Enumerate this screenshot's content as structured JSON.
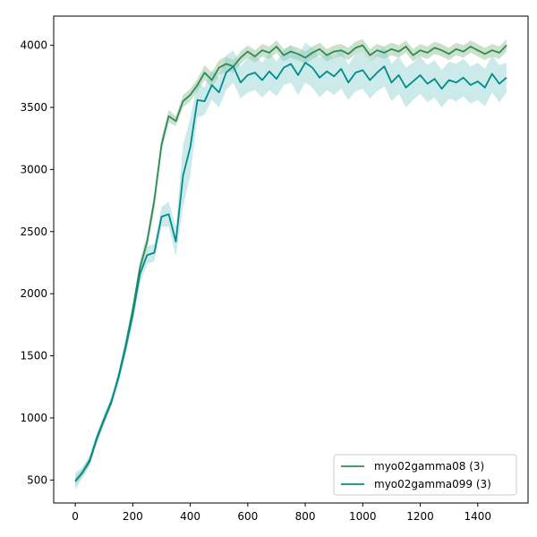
{
  "chart_data": {
    "type": "line",
    "title": "",
    "xlabel": "",
    "ylabel": "",
    "xlim": [
      -75,
      1575
    ],
    "ylim": [
      315,
      4235
    ],
    "xticks": [
      0,
      200,
      400,
      600,
      800,
      1000,
      1200,
      1400
    ],
    "yticks": [
      500,
      1000,
      1500,
      2000,
      2500,
      3000,
      3500,
      4000
    ],
    "grid": false,
    "legend_position": "lower-right",
    "series": [
      {
        "name": "myo02gamma08 (3)",
        "color": "#2e8b57",
        "band_color": "#8fbc8f",
        "x": [
          0,
          25,
          50,
          75,
          100,
          125,
          150,
          175,
          200,
          225,
          250,
          275,
          300,
          325,
          350,
          375,
          400,
          425,
          450,
          475,
          500,
          525,
          550,
          575,
          600,
          625,
          650,
          675,
          700,
          725,
          750,
          775,
          800,
          825,
          850,
          875,
          900,
          925,
          950,
          975,
          1000,
          1025,
          1050,
          1075,
          1100,
          1125,
          1150,
          1175,
          1200,
          1225,
          1250,
          1275,
          1300,
          1325,
          1350,
          1375,
          1400,
          1425,
          1450,
          1475,
          1500
        ],
        "y": [
          490,
          560,
          650,
          830,
          980,
          1120,
          1330,
          1580,
          1870,
          2210,
          2420,
          2750,
          3200,
          3430,
          3390,
          3550,
          3600,
          3680,
          3780,
          3720,
          3820,
          3850,
          3830,
          3900,
          3950,
          3910,
          3960,
          3940,
          3990,
          3920,
          3950,
          3930,
          3900,
          3940,
          3970,
          3920,
          3950,
          3960,
          3930,
          3980,
          4000,
          3920,
          3960,
          3940,
          3970,
          3950,
          3990,
          3920,
          3960,
          3940,
          3980,
          3960,
          3930,
          3970,
          3950,
          3990,
          3960,
          3930,
          3960,
          3940,
          4000
        ],
        "lower": [
          460,
          530,
          620,
          800,
          950,
          1090,
          1290,
          1530,
          1820,
          2150,
          2360,
          2680,
          3140,
          3380,
          3350,
          3500,
          3550,
          3630,
          3720,
          3660,
          3760,
          3790,
          3780,
          3850,
          3900,
          3860,
          3910,
          3890,
          3940,
          3870,
          3900,
          3880,
          3850,
          3890,
          3920,
          3870,
          3900,
          3910,
          3880,
          3930,
          3950,
          3870,
          3910,
          3890,
          3920,
          3900,
          3940,
          3870,
          3910,
          3890,
          3930,
          3910,
          3880,
          3920,
          3900,
          3940,
          3910,
          3880,
          3910,
          3890,
          3950
        ],
        "upper": [
          520,
          590,
          680,
          860,
          1010,
          1150,
          1370,
          1630,
          1920,
          2270,
          2480,
          2820,
          3260,
          3480,
          3430,
          3600,
          3650,
          3730,
          3840,
          3780,
          3880,
          3910,
          3880,
          3950,
          4000,
          3960,
          4010,
          3990,
          4040,
          3970,
          4000,
          3980,
          3950,
          3990,
          4020,
          3970,
          4000,
          4010,
          3980,
          4030,
          4050,
          3970,
          4010,
          3990,
          4020,
          4000,
          4040,
          3970,
          4010,
          3990,
          4030,
          4010,
          3980,
          4020,
          4000,
          4040,
          4010,
          3980,
          4010,
          3990,
          4050
        ]
      },
      {
        "name": "myo02gamma099 (3)",
        "color": "#008b8b",
        "band_color": "#8fd0d0",
        "x": [
          0,
          25,
          50,
          75,
          100,
          125,
          150,
          175,
          200,
          225,
          250,
          275,
          300,
          325,
          350,
          375,
          400,
          425,
          450,
          475,
          500,
          525,
          550,
          575,
          600,
          625,
          650,
          675,
          700,
          725,
          750,
          775,
          800,
          825,
          850,
          875,
          900,
          925,
          950,
          975,
          1000,
          1025,
          1050,
          1075,
          1100,
          1125,
          1150,
          1175,
          1200,
          1225,
          1250,
          1275,
          1300,
          1325,
          1350,
          1375,
          1400,
          1425,
          1450,
          1475,
          1500
        ],
        "y": [
          490,
          560,
          660,
          840,
          990,
          1130,
          1320,
          1560,
          1830,
          2160,
          2310,
          2330,
          2620,
          2640,
          2420,
          2950,
          3180,
          3560,
          3550,
          3680,
          3620,
          3780,
          3830,
          3700,
          3760,
          3780,
          3720,
          3790,
          3730,
          3820,
          3850,
          3760,
          3860,
          3820,
          3740,
          3790,
          3750,
          3810,
          3700,
          3780,
          3800,
          3720,
          3780,
          3830,
          3700,
          3760,
          3660,
          3710,
          3760,
          3690,
          3730,
          3650,
          3720,
          3700,
          3740,
          3680,
          3710,
          3660,
          3770,
          3690,
          3740
        ],
        "lower": [
          420,
          520,
          620,
          800,
          950,
          1090,
          1270,
          1500,
          1760,
          2080,
          2240,
          2260,
          2540,
          2540,
          2300,
          2700,
          2950,
          3420,
          3440,
          3560,
          3500,
          3640,
          3700,
          3570,
          3620,
          3640,
          3580,
          3640,
          3590,
          3680,
          3700,
          3600,
          3700,
          3660,
          3580,
          3640,
          3600,
          3650,
          3560,
          3630,
          3650,
          3570,
          3630,
          3670,
          3550,
          3610,
          3500,
          3560,
          3610,
          3540,
          3580,
          3500,
          3570,
          3550,
          3590,
          3530,
          3560,
          3510,
          3620,
          3540,
          3620
        ],
        "upper": [
          560,
          600,
          700,
          880,
          1030,
          1170,
          1370,
          1620,
          1900,
          2240,
          2380,
          2400,
          2700,
          2740,
          2540,
          3200,
          3410,
          3700,
          3660,
          3800,
          3740,
          3920,
          3960,
          3830,
          3900,
          3920,
          3860,
          3940,
          3870,
          3960,
          4000,
          3920,
          4020,
          3980,
          3900,
          3940,
          3900,
          3970,
          3840,
          3930,
          3950,
          3870,
          3930,
          3990,
          3850,
          3910,
          3820,
          3860,
          3910,
          3840,
          3880,
          3800,
          3870,
          3850,
          3890,
          3830,
          3860,
          3810,
          3920,
          3840,
          3860
        ]
      }
    ]
  }
}
